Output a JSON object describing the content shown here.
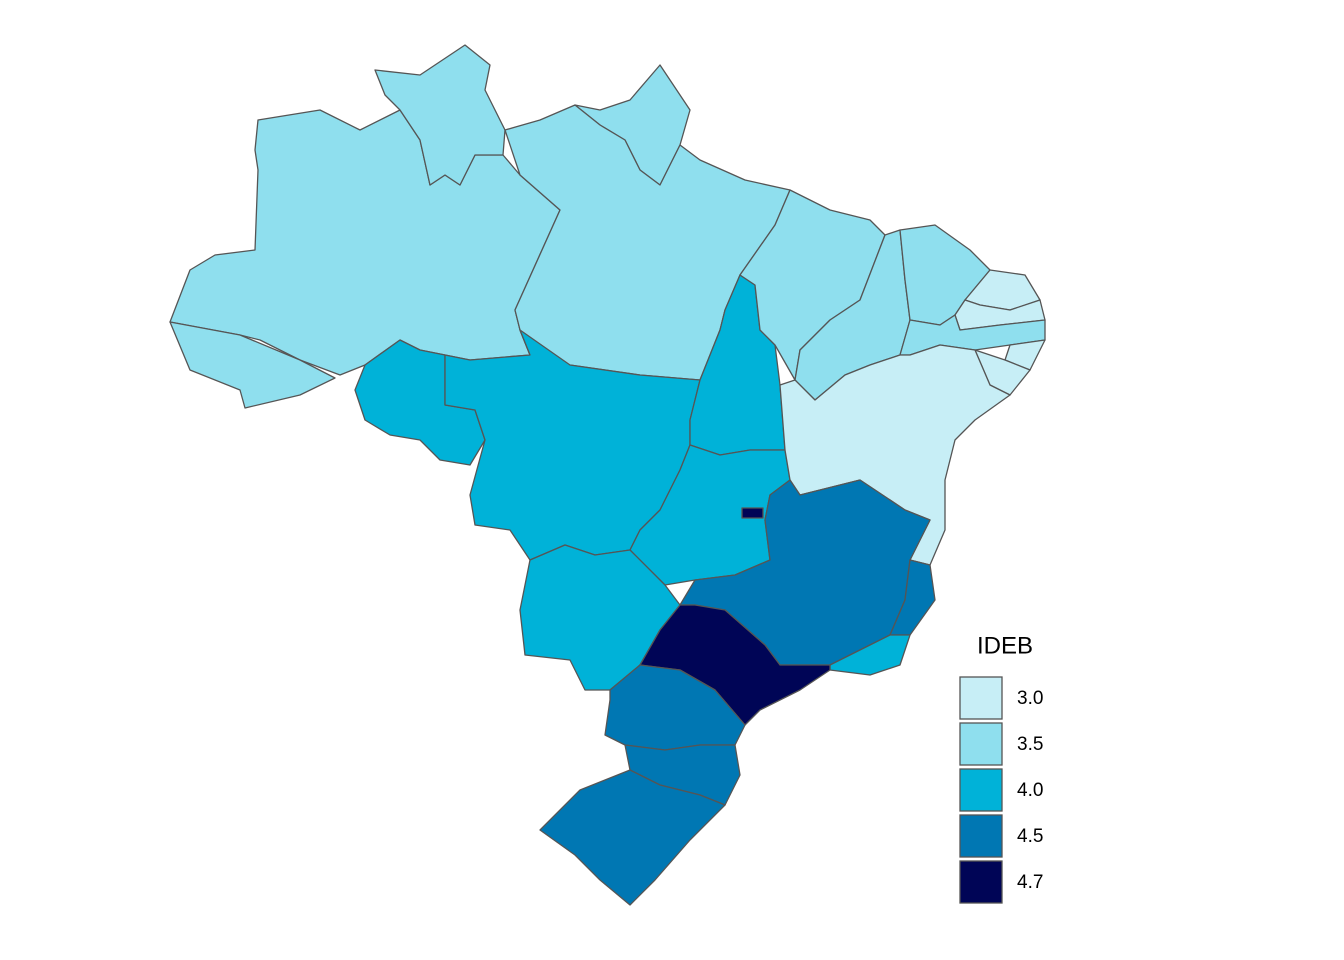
{
  "legend": {
    "title": "IDEB",
    "entries": [
      {
        "value": 3,
        "label": "3.0",
        "color": "#c7eef6"
      },
      {
        "value": 3.5,
        "label": "3.5",
        "color": "#8fdfee"
      },
      {
        "value": 4,
        "label": "4.0",
        "color": "#00b2d8"
      },
      {
        "value": 4.5,
        "label": "4.5",
        "color": "#0077b3"
      },
      {
        "value": 4.7,
        "label": "4.7",
        "color": "#000556"
      }
    ]
  },
  "regions": [
    3.5,
    3.5,
    3.5,
    3.5,
    3.5,
    4,
    4,
    4,
    4,
    4.7,
    4,
    3.5,
    3.5,
    3.5,
    3,
    3,
    3.5,
    3,
    3,
    3,
    4.5,
    4.5,
    4,
    4.7,
    4.5,
    4.5,
    4.5
  ]
}
